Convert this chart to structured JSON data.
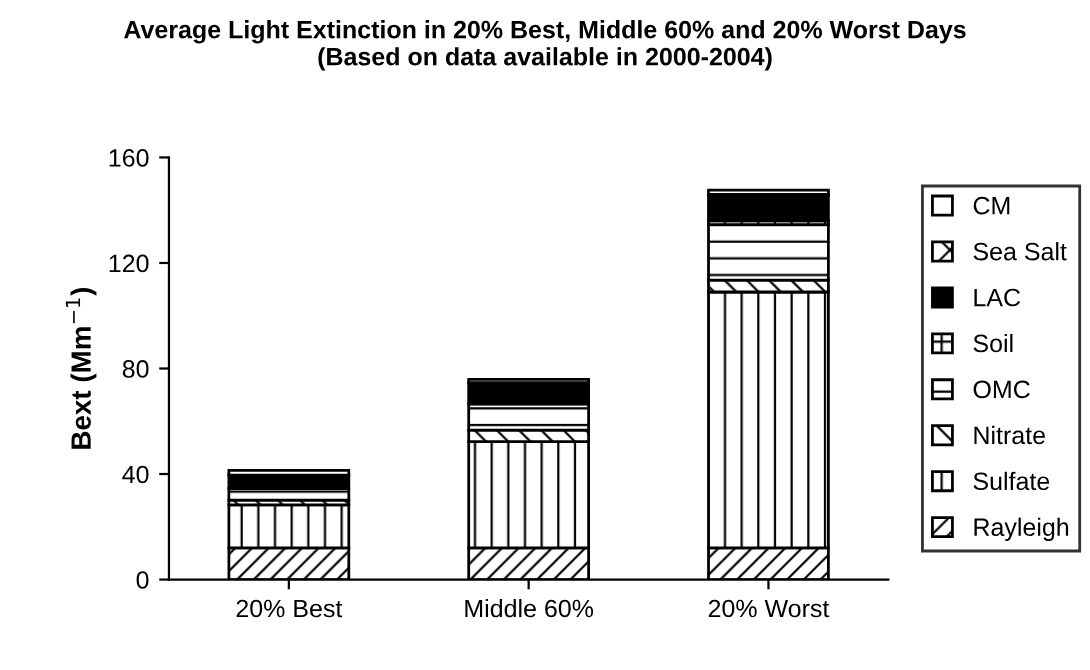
{
  "chart_data": {
    "type": "bar",
    "title": "Average Light Extinction in 20% Best, Middle 60% and 20% Worst Days\n(Based on data available in 2000-2004)",
    "ylabel": "Bext (Mm$^{−1}$)",
    "categories": [
      "20% Best",
      "Middle 60%",
      "20% Worst"
    ],
    "stacked": true,
    "ylim": [
      0,
      160
    ],
    "yticks": [
      0,
      40,
      80,
      120,
      160
    ],
    "grid": false,
    "legend": "right",
    "series": [
      {
        "name": "Rayleigh",
        "color": "#ffffff",
        "values": [
          12,
          12,
          12
        ]
      },
      {
        "name": "Sulfate",
        "color": "#ffffff",
        "values": [
          16.3,
          40.3,
          97
        ]
      },
      {
        "name": "Nitrate",
        "color": "#ffffff",
        "values": [
          1.8,
          4.3,
          4.5
        ]
      },
      {
        "name": "OMC",
        "color": "#ffffff",
        "values": [
          4.5,
          10,
          21
        ]
      },
      {
        "name": "Soil",
        "color": "#ffffff",
        "values": [
          null,
          null,
          1.5
        ]
      },
      {
        "name": "LAC",
        "color": "#000000",
        "values": [
          5,
          8,
          9.6
        ]
      },
      {
        "name": "Sea Salt",
        "color": "#ffffff",
        "values": [
          null,
          null,
          0.4
        ]
      },
      {
        "name": "CM",
        "color": "#ffffff",
        "values": [
          1.8,
          1.3,
          1.6
        ]
      }
    ]
  }
}
